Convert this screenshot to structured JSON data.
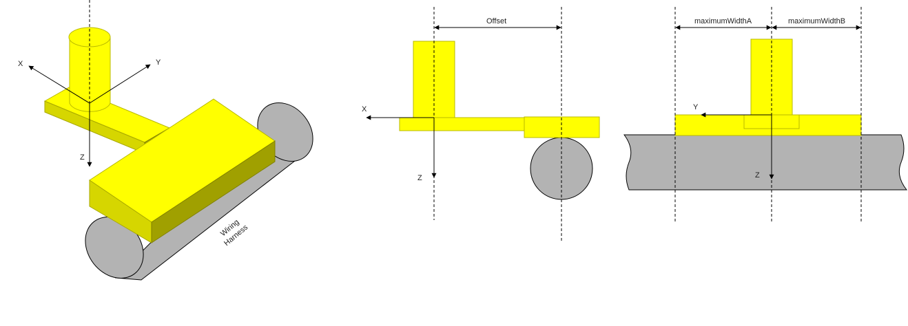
{
  "iso_view": {
    "axis_x": "X",
    "axis_y": "Y",
    "axis_z": "Z",
    "harness_label_line1": "Wiring",
    "harness_label_line2": "Harness"
  },
  "side_view": {
    "dimension_label": "Offset",
    "axis_x": "X",
    "axis_z": "Z"
  },
  "front_view": {
    "dimension_a_label": "maximumWidthA",
    "dimension_b_label": "maximumWidthB",
    "axis_y": "Y",
    "axis_z": "Z"
  },
  "colors": {
    "part": "#ffff00",
    "part_side": "#d6d600",
    "part_dark": "#a0a000",
    "harness": "#b3b3b3"
  }
}
